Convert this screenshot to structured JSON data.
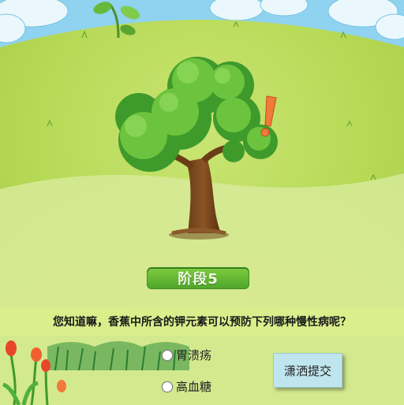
{
  "stage": {
    "label": "阶段5"
  },
  "question": {
    "text": "您知道嘛，香蕉中所含的钾元素可以预防下列哪种慢性病呢？"
  },
  "options": [
    {
      "label": "胃溃疡",
      "selected": false
    },
    {
      "label": "高血糖",
      "selected": false
    }
  ],
  "submit": {
    "label": "潇洒提交"
  },
  "colors": {
    "sky": "#8fd3f0",
    "grass": "#bfdc6a",
    "badge": "#5fb22e",
    "submit_bg": "#bfe6ee"
  }
}
